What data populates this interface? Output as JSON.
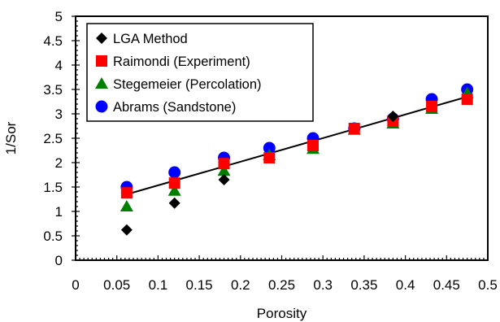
{
  "chart_data": {
    "type": "scatter",
    "title": "",
    "xlabel": "Porosity",
    "ylabel": "1/Sor",
    "xlim": [
      0,
      0.5
    ],
    "ylim": [
      0,
      5
    ],
    "x_major_step": 0.05,
    "y_major_step": 0.5,
    "x_tick_labels": [
      "0",
      "0.05",
      "0.1",
      "0.15",
      "0.2",
      "0.25",
      "0.3",
      "0.35",
      "0.4",
      "0.45",
      "0.5"
    ],
    "y_tick_labels": [
      "0",
      "0.5",
      "1",
      "1.5",
      "2",
      "2.5",
      "3",
      "3.5",
      "4",
      "4.5",
      "5"
    ],
    "grid": false,
    "legend_position": "top-left",
    "series": [
      {
        "name": "LGA Method",
        "marker": "diamond",
        "color": "#000000",
        "x": [
          0.062,
          0.12,
          0.18,
          0.385
        ],
        "y": [
          0.62,
          1.17,
          1.65,
          2.95
        ]
      },
      {
        "name": "Raimondi (Experiment)",
        "marker": "square",
        "color": "#ff0000",
        "x": [
          0.062,
          0.12,
          0.18,
          0.235,
          0.288,
          0.338,
          0.385,
          0.432,
          0.475
        ],
        "y": [
          1.38,
          1.58,
          1.98,
          2.1,
          2.35,
          2.7,
          2.85,
          3.15,
          3.3
        ]
      },
      {
        "name": "Stegemeier (Percolation)",
        "marker": "triangle",
        "color": "#008000",
        "x": [
          0.062,
          0.12,
          0.18,
          0.235,
          0.288,
          0.338,
          0.385,
          0.432,
          0.475
        ],
        "y": [
          1.1,
          1.42,
          1.83,
          2.15,
          2.28,
          2.67,
          2.8,
          3.1,
          3.42
        ]
      },
      {
        "name": "Abrams (Sandstone)",
        "marker": "circle",
        "color": "#0000ff",
        "x": [
          0.062,
          0.12,
          0.18,
          0.235,
          0.288,
          0.338,
          0.385,
          0.432,
          0.475
        ],
        "y": [
          1.5,
          1.8,
          2.1,
          2.3,
          2.5,
          2.7,
          2.9,
          3.3,
          3.5
        ]
      }
    ],
    "trendline": {
      "color": "#000000",
      "x": [
        0.062,
        0.475
      ],
      "y": [
        1.35,
        3.35
      ]
    }
  }
}
